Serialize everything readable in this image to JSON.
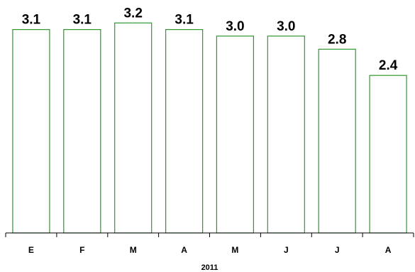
{
  "chart_data": {
    "type": "bar",
    "categories": [
      "E",
      "F",
      "M",
      "A",
      "M",
      "J",
      "J",
      "A"
    ],
    "values": [
      3.1,
      3.1,
      3.2,
      3.1,
      3.0,
      3.0,
      2.8,
      2.4
    ],
    "data_labels": [
      "3.1",
      "3.1",
      "3.2",
      "3.1",
      "3.0",
      "3.0",
      "2.8",
      "2.4"
    ],
    "xlabel": "2011",
    "ylabel": "",
    "title": "",
    "ylim": [
      0,
      3.2
    ],
    "grid": false,
    "bar_fill": "#ffffff",
    "bar_stroke": "#2e9a2e",
    "axis_color": "#000000"
  }
}
